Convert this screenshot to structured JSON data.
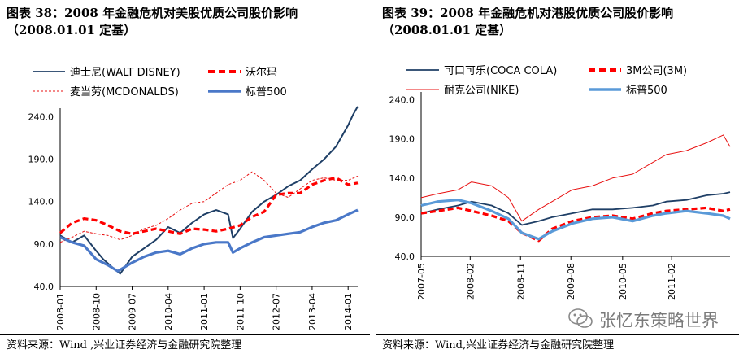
{
  "colors": {
    "disney": "#1f3f66",
    "walmart": "#ff0000",
    "mcd": "#e81010",
    "sp500": "#4a78c8",
    "cocacola": "#1f3f66",
    "threem": "#ff0000",
    "nike": "#e81010",
    "sp500_light": "#5a9ad8"
  },
  "chart_data": [
    {
      "type": "line",
      "title_line1": "图表 38：2008 年金融危机对美股优质公司股价影响",
      "title_line2": "（2008.01.01 定基）",
      "source": "资料来源：Wind ,兴业证券经济与金融研究院整理",
      "ylim": [
        40,
        250
      ],
      "y_ticks": [
        "240.0",
        "190.0",
        "140.0",
        "90.0",
        "40.0"
      ],
      "y_tick_values": [
        240,
        190,
        140,
        90,
        40
      ],
      "x_range": [
        2008.0,
        2014.2
      ],
      "x_ticks": [
        "2008-01",
        "2008-10",
        "2009-07",
        "2010-04",
        "2011-01",
        "2011-10",
        "2012-07",
        "2013-04",
        "2014-01"
      ],
      "x_tick_values": [
        2008.0,
        2008.75,
        2009.5,
        2010.25,
        2011.0,
        2011.75,
        2012.5,
        2013.25,
        2014.0
      ],
      "legend": [
        {
          "label": "迪士尼(WALT DISNEY)",
          "key": "disney",
          "style": "solid"
        },
        {
          "label": "沃尔玛",
          "key": "walmart",
          "style": "dashed-bold"
        },
        {
          "label": "麦当劳(MCDONALDS)",
          "key": "mcd",
          "style": "dashed-thin"
        },
        {
          "label": "标普500",
          "key": "sp500",
          "style": "solid-bold"
        }
      ],
      "series": [
        {
          "name": "迪士尼(WALT DISNEY)",
          "key": "disney",
          "width": 2,
          "dash": "",
          "x": [
            2008.0,
            2008.25,
            2008.5,
            2008.75,
            2008.9,
            2009.1,
            2009.25,
            2009.5,
            2009.75,
            2010.0,
            2010.25,
            2010.5,
            2010.75,
            2011.0,
            2011.25,
            2011.5,
            2011.6,
            2011.75,
            2012.0,
            2012.25,
            2012.5,
            2012.75,
            2013.0,
            2013.25,
            2013.5,
            2013.75,
            2014.0,
            2014.1,
            2014.2
          ],
          "values": [
            100,
            92,
            100,
            82,
            72,
            62,
            55,
            75,
            85,
            95,
            110,
            103,
            115,
            125,
            130,
            125,
            97,
            108,
            128,
            140,
            148,
            158,
            165,
            178,
            190,
            205,
            230,
            242,
            252
          ]
        },
        {
          "name": "沃尔玛",
          "key": "walmart",
          "width": 3.2,
          "dash": "7,4",
          "x": [
            2008.0,
            2008.25,
            2008.5,
            2008.75,
            2009.0,
            2009.25,
            2009.5,
            2009.75,
            2010.0,
            2010.25,
            2010.5,
            2010.75,
            2011.0,
            2011.25,
            2011.5,
            2011.75,
            2012.0,
            2012.25,
            2012.5,
            2012.75,
            2013.0,
            2013.25,
            2013.5,
            2013.75,
            2014.0,
            2014.2
          ],
          "values": [
            103,
            115,
            120,
            118,
            112,
            105,
            102,
            105,
            108,
            105,
            102,
            108,
            107,
            105,
            108,
            112,
            122,
            128,
            148,
            150,
            150,
            160,
            165,
            168,
            160,
            162
          ]
        },
        {
          "name": "麦当劳(MCDONALDS)",
          "key": "mcd",
          "width": 1,
          "dash": "3,2",
          "x": [
            2008.0,
            2008.25,
            2008.5,
            2008.75,
            2009.0,
            2009.25,
            2009.5,
            2009.75,
            2010.0,
            2010.25,
            2010.5,
            2010.75,
            2011.0,
            2011.25,
            2011.5,
            2011.75,
            2012.0,
            2012.25,
            2012.5,
            2012.75,
            2013.0,
            2013.25,
            2013.5,
            2013.75,
            2014.0,
            2014.2
          ],
          "values": [
            92,
            98,
            105,
            102,
            100,
            95,
            100,
            108,
            112,
            120,
            130,
            138,
            140,
            150,
            160,
            165,
            175,
            165,
            150,
            145,
            155,
            165,
            168,
            165,
            165,
            170
          ]
        },
        {
          "name": "标普500",
          "key": "sp500",
          "width": 3.2,
          "dash": "",
          "x": [
            2008.0,
            2008.25,
            2008.5,
            2008.75,
            2009.0,
            2009.2,
            2009.5,
            2009.75,
            2010.0,
            2010.25,
            2010.5,
            2010.75,
            2011.0,
            2011.25,
            2011.5,
            2011.6,
            2011.75,
            2012.0,
            2012.25,
            2012.5,
            2012.75,
            2013.0,
            2013.25,
            2013.5,
            2013.75,
            2014.0,
            2014.2
          ],
          "values": [
            98,
            92,
            88,
            72,
            65,
            58,
            68,
            75,
            80,
            82,
            78,
            85,
            90,
            92,
            92,
            80,
            85,
            92,
            98,
            100,
            102,
            104,
            110,
            115,
            118,
            125,
            130
          ]
        }
      ]
    },
    {
      "type": "line",
      "title_line1": "图表 39：2008 年金融危机对港股优质公司股价影响",
      "title_line2": "（2008.01.01 定基）",
      "source": "资料来源：Wind,兴业证券经济与金融研究院整理",
      "ylim": [
        40,
        250
      ],
      "y_ticks": [
        "240.0",
        "190.0",
        "140.0",
        "90.0",
        "40.0"
      ],
      "y_tick_values": [
        240,
        190,
        140,
        90,
        40
      ],
      "x_range": [
        2007.35,
        2011.95
      ],
      "x_ticks": [
        "2007-05",
        "2008-02",
        "2008-11",
        "2009-08",
        "2010-05",
        "2011-02"
      ],
      "x_tick_values": [
        2007.35,
        2008.08,
        2008.83,
        2009.58,
        2010.35,
        2011.08
      ],
      "legend": [
        {
          "label": "可口可乐(COCA COLA)",
          "key": "cocacola",
          "style": "solid"
        },
        {
          "label": "3M公司(3M)",
          "key": "threem",
          "style": "dashed-bold"
        },
        {
          "label": "耐克公司(NIKE)",
          "key": "nike",
          "style": "solid-thin"
        },
        {
          "label": "标普500",
          "key": "sp500_light",
          "style": "solid-bold"
        }
      ],
      "series": [
        {
          "name": "耐克公司(NIKE)",
          "key": "nike",
          "width": 1,
          "dash": "",
          "x": [
            2007.35,
            2007.6,
            2007.9,
            2008.1,
            2008.4,
            2008.65,
            2008.85,
            2009.1,
            2009.3,
            2009.6,
            2009.9,
            2010.2,
            2010.5,
            2010.8,
            2011.0,
            2011.3,
            2011.6,
            2011.85,
            2011.95
          ],
          "values": [
            115,
            120,
            125,
            135,
            130,
            115,
            85,
            100,
            110,
            125,
            130,
            140,
            145,
            160,
            170,
            175,
            185,
            195,
            180
          ]
        },
        {
          "name": "可口可乐(COCA COLA)",
          "key": "cocacola",
          "width": 1.8,
          "dash": "",
          "x": [
            2007.35,
            2007.6,
            2007.9,
            2008.1,
            2008.4,
            2008.65,
            2008.85,
            2009.1,
            2009.3,
            2009.6,
            2009.9,
            2010.2,
            2010.5,
            2010.8,
            2011.0,
            2011.3,
            2011.6,
            2011.85,
            2011.95
          ],
          "values": [
            95,
            100,
            105,
            110,
            105,
            95,
            80,
            85,
            90,
            95,
            100,
            100,
            102,
            105,
            110,
            112,
            118,
            120,
            122
          ]
        },
        {
          "name": "3M公司(3M)",
          "key": "threem",
          "width": 3.2,
          "dash": "7,4",
          "x": [
            2007.35,
            2007.6,
            2007.9,
            2008.1,
            2008.4,
            2008.65,
            2008.85,
            2009.1,
            2009.3,
            2009.6,
            2009.9,
            2010.2,
            2010.5,
            2010.8,
            2011.0,
            2011.3,
            2011.6,
            2011.85,
            2011.95
          ],
          "values": [
            95,
            98,
            102,
            98,
            92,
            85,
            70,
            60,
            75,
            85,
            90,
            92,
            88,
            95,
            98,
            100,
            102,
            98,
            100
          ]
        },
        {
          "name": "标普500",
          "key": "sp500_light",
          "width": 3.2,
          "dash": "",
          "x": [
            2007.35,
            2007.6,
            2007.9,
            2008.1,
            2008.4,
            2008.65,
            2008.85,
            2009.1,
            2009.3,
            2009.6,
            2009.9,
            2010.2,
            2010.5,
            2010.8,
            2011.0,
            2011.3,
            2011.6,
            2011.85,
            2011.95
          ],
          "values": [
            105,
            110,
            112,
            108,
            98,
            88,
            70,
            62,
            72,
            82,
            88,
            90,
            85,
            92,
            95,
            98,
            95,
            92,
            88
          ]
        }
      ]
    }
  ],
  "watermark": "张忆东策略世界"
}
